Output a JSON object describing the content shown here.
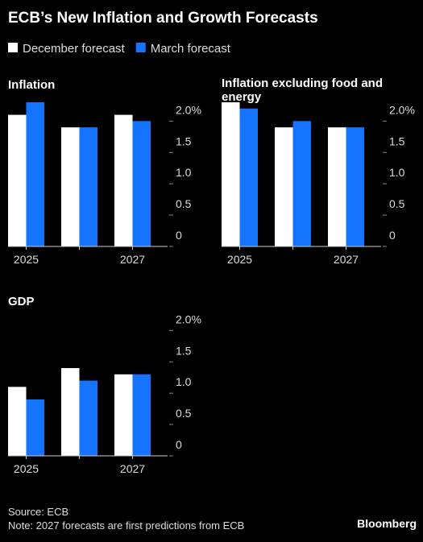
{
  "header": {
    "title": "ECB’s New Inflation and Growth Forecasts"
  },
  "chart_data": [
    {
      "type": "bar",
      "title": "Inflation",
      "categories": [
        "2025",
        null,
        "2027"
      ],
      "series": [
        {
          "name": "December forecast",
          "color": "#ffffff",
          "values": [
            2.1,
            1.9,
            2.1
          ]
        },
        {
          "name": "March forecast",
          "color": "#1473ff",
          "values": [
            2.3,
            1.9,
            2.0
          ]
        }
      ],
      "ylim": [
        0,
        2.3
      ],
      "yticks": [
        0,
        0.5,
        {
          "value": 1,
          "label": "1.0"
        },
        1.5,
        {
          "value": 2,
          "label": "2.0%"
        }
      ]
    },
    {
      "type": "bar",
      "title": "Inflation excluding food and energy",
      "categories": [
        "2025",
        null,
        "2027"
      ],
      "series": [
        {
          "name": "December forecast",
          "color": "#ffffff",
          "values": [
            2.3,
            1.9,
            1.9
          ]
        },
        {
          "name": "March forecast",
          "color": "#1473ff",
          "values": [
            2.2,
            2.0,
            1.9
          ]
        }
      ],
      "ylim": [
        0,
        2.3
      ],
      "yticks": [
        0,
        0.5,
        {
          "value": 1,
          "label": "1.0"
        },
        1.5,
        {
          "value": 2,
          "label": "2.0%"
        }
      ]
    },
    {
      "type": "bar",
      "title": "GDP",
      "categories": [
        "2025",
        null,
        "2027"
      ],
      "series": [
        {
          "name": "December forecast",
          "color": "#ffffff",
          "values": [
            1.1,
            1.4,
            1.3
          ]
        },
        {
          "name": "March forecast",
          "color": "#1473ff",
          "values": [
            0.9,
            1.2,
            1.3
          ]
        }
      ],
      "ylim": [
        0,
        2.3
      ],
      "yticks": [
        0,
        0.5,
        {
          "value": 1,
          "label": "1.0"
        },
        1.5,
        {
          "value": 2,
          "label": "2.0%"
        }
      ]
    }
  ],
  "footer": {
    "source": "Source: ECB",
    "note": "Note: 2027 forecasts are first predictions from ECB",
    "logo": "Bloomberg"
  }
}
